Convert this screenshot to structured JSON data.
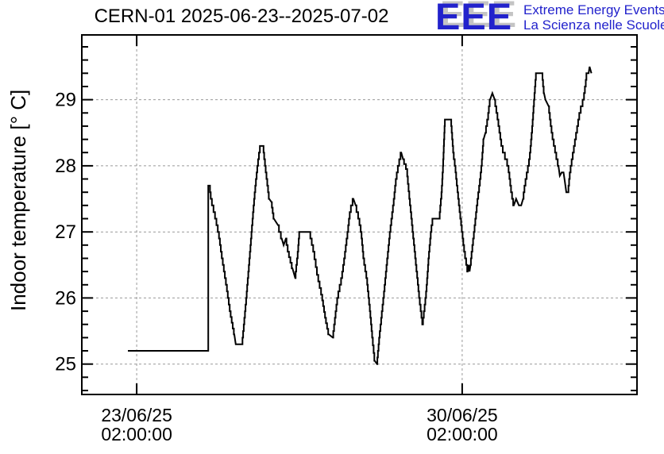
{
  "title": "CERN-01 2025-06-23--2025-07-02",
  "logo": {
    "acronym": "EEE",
    "line1": "Extreme Energy Events",
    "line2": "La Scienza nelle Scuole",
    "color": "#2222cc",
    "shadow_color": "#c4c4c4"
  },
  "chart_data": {
    "type": "line",
    "title": "CERN-01 2025-06-23--2025-07-02",
    "xlabel": "",
    "ylabel": "Indoor temperature [° C]",
    "x_unit": "days since 23/06/25 02:00:00",
    "xlim": [
      -1.18,
      10.76
    ],
    "ylim": [
      24.54,
      29.98
    ],
    "grid": true,
    "grid_style": "dashed",
    "grid_color": "#999999",
    "line_color": "#000000",
    "quantization_step_deg": 0.1,
    "x_ticks": [
      {
        "pos": 0,
        "line1": "23/06/25",
        "line2": "02:00:00"
      },
      {
        "pos": 7,
        "line1": "30/06/25",
        "line2": "02:00:00"
      }
    ],
    "y_ticks": [
      25,
      26,
      27,
      28,
      29
    ],
    "y_minor_step": 0.2,
    "series": [
      {
        "name": "Indoor temperature",
        "points": [
          [
            -0.19,
            25.2
          ],
          [
            1.54,
            25.2
          ],
          [
            1.54,
            27.7
          ],
          [
            1.57,
            27.7
          ],
          [
            1.6,
            27.5
          ],
          [
            1.67,
            27.3
          ],
          [
            1.76,
            27.0
          ],
          [
            1.84,
            26.6
          ],
          [
            1.93,
            26.2
          ],
          [
            2.01,
            25.8
          ],
          [
            2.1,
            25.45
          ],
          [
            2.13,
            25.3
          ],
          [
            2.27,
            25.3
          ],
          [
            2.36,
            26.0
          ],
          [
            2.44,
            26.7
          ],
          [
            2.53,
            27.5
          ],
          [
            2.6,
            28.0
          ],
          [
            2.66,
            28.3
          ],
          [
            2.72,
            28.3
          ],
          [
            2.75,
            28.1
          ],
          [
            2.85,
            27.5
          ],
          [
            2.9,
            27.45
          ],
          [
            2.95,
            27.2
          ],
          [
            3.04,
            27.1
          ],
          [
            3.12,
            26.9
          ],
          [
            3.16,
            26.8
          ],
          [
            3.21,
            26.9
          ],
          [
            3.26,
            26.7
          ],
          [
            3.35,
            26.45
          ],
          [
            3.41,
            26.3
          ],
          [
            3.47,
            26.7
          ],
          [
            3.5,
            27.0
          ],
          [
            3.72,
            27.0
          ],
          [
            3.81,
            26.7
          ],
          [
            3.89,
            26.35
          ],
          [
            3.98,
            26.05
          ],
          [
            4.06,
            25.7
          ],
          [
            4.13,
            25.45
          ],
          [
            4.22,
            25.4
          ],
          [
            4.32,
            26.0
          ],
          [
            4.41,
            26.3
          ],
          [
            4.47,
            26.6
          ],
          [
            4.54,
            27.0
          ],
          [
            4.59,
            27.3
          ],
          [
            4.66,
            27.5
          ],
          [
            4.71,
            27.4
          ],
          [
            4.78,
            27.2
          ],
          [
            4.83,
            27.0
          ],
          [
            4.88,
            26.6
          ],
          [
            4.95,
            26.3
          ],
          [
            5.02,
            25.8
          ],
          [
            5.07,
            25.4
          ],
          [
            5.12,
            25.05
          ],
          [
            5.17,
            25.0
          ],
          [
            5.22,
            25.4
          ],
          [
            5.31,
            26.0
          ],
          [
            5.38,
            26.5
          ],
          [
            5.45,
            27.0
          ],
          [
            5.52,
            27.4
          ],
          [
            5.58,
            27.8
          ],
          [
            5.63,
            28.0
          ],
          [
            5.69,
            28.2
          ],
          [
            5.73,
            28.1
          ],
          [
            5.81,
            27.95
          ],
          [
            5.87,
            27.5
          ],
          [
            5.94,
            27.0
          ],
          [
            6.01,
            26.5
          ],
          [
            6.08,
            26.0
          ],
          [
            6.15,
            25.6
          ],
          [
            6.2,
            25.9
          ],
          [
            6.23,
            26.1
          ],
          [
            6.28,
            26.6
          ],
          [
            6.33,
            27.0
          ],
          [
            6.37,
            27.2
          ],
          [
            6.51,
            27.2
          ],
          [
            6.56,
            27.6
          ],
          [
            6.59,
            28.0
          ],
          [
            6.63,
            28.7
          ],
          [
            6.76,
            28.7
          ],
          [
            6.81,
            28.2
          ],
          [
            6.85,
            28.0
          ],
          [
            6.92,
            27.5
          ],
          [
            7.0,
            27.0
          ],
          [
            7.05,
            26.7
          ],
          [
            7.12,
            26.4
          ],
          [
            7.14,
            26.5
          ],
          [
            7.16,
            26.4
          ],
          [
            7.18,
            26.5
          ],
          [
            7.21,
            26.7
          ],
          [
            7.26,
            27.0
          ],
          [
            7.32,
            27.4
          ],
          [
            7.39,
            27.8
          ],
          [
            7.43,
            28.1
          ],
          [
            7.46,
            28.4
          ],
          [
            7.5,
            28.5
          ],
          [
            7.55,
            28.7
          ],
          [
            7.6,
            29.0
          ],
          [
            7.65,
            29.1
          ],
          [
            7.7,
            29.0
          ],
          [
            7.77,
            28.7
          ],
          [
            7.85,
            28.3
          ],
          [
            7.99,
            28.0
          ],
          [
            8.06,
            27.6
          ],
          [
            8.11,
            27.4
          ],
          [
            8.16,
            27.5
          ],
          [
            8.22,
            27.4
          ],
          [
            8.27,
            27.4
          ],
          [
            8.31,
            27.5
          ],
          [
            8.35,
            27.7
          ],
          [
            8.4,
            27.9
          ],
          [
            8.45,
            28.1
          ],
          [
            8.5,
            28.5
          ],
          [
            8.55,
            29.0
          ],
          [
            8.59,
            29.4
          ],
          [
            8.72,
            29.4
          ],
          [
            8.76,
            29.1
          ],
          [
            8.79,
            29.0
          ],
          [
            8.86,
            28.9
          ],
          [
            8.93,
            28.5
          ],
          [
            9.01,
            28.2
          ],
          [
            9.07,
            28.0
          ],
          [
            9.1,
            27.85
          ],
          [
            9.14,
            27.9
          ],
          [
            9.18,
            27.9
          ],
          [
            9.21,
            27.75
          ],
          [
            9.24,
            27.6
          ],
          [
            9.28,
            27.6
          ],
          [
            9.32,
            27.9
          ],
          [
            9.39,
            28.2
          ],
          [
            9.46,
            28.5
          ],
          [
            9.53,
            28.8
          ],
          [
            9.61,
            29.0
          ],
          [
            9.65,
            29.2
          ],
          [
            9.68,
            29.4
          ],
          [
            9.72,
            29.4
          ],
          [
            9.74,
            29.5
          ],
          [
            9.78,
            29.4
          ]
        ]
      }
    ]
  }
}
